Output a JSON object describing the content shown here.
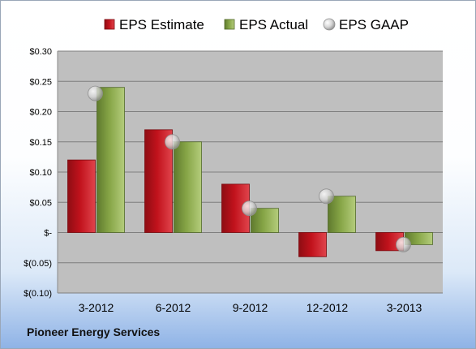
{
  "footer": {
    "company": "Pioneer Energy Services"
  },
  "colors": {
    "estimate": "#c1121c",
    "actual": "#86a546",
    "gaap": "#b8b8b8",
    "plot_bg": "#bfbfbf",
    "grid": "#7f7f7f"
  },
  "chart_data": {
    "type": "bar",
    "title": "",
    "xlabel": "",
    "ylabel": "",
    "categories": [
      "3-2012",
      "6-2012",
      "9-2012",
      "12-2012",
      "3-2013"
    ],
    "series": [
      {
        "name": "EPS Estimate",
        "type": "bar",
        "values": [
          0.12,
          0.17,
          0.08,
          -0.04,
          -0.03
        ]
      },
      {
        "name": "EPS Actual",
        "type": "bar",
        "values": [
          0.24,
          0.15,
          0.04,
          0.06,
          -0.02
        ]
      },
      {
        "name": "EPS GAAP",
        "type": "scatter",
        "values": [
          0.23,
          0.15,
          0.04,
          0.06,
          -0.02
        ]
      }
    ],
    "ylim": [
      -0.1,
      0.3
    ],
    "yticks": [
      -0.1,
      -0.05,
      0,
      0.05,
      0.1,
      0.15,
      0.2,
      0.25,
      0.3
    ],
    "ytick_labels": [
      "$(0.10)",
      "$(0.05)",
      "$-",
      "$0.05",
      "$0.10",
      "$0.15",
      "$0.20",
      "$0.25",
      "$0.30"
    ],
    "grid": true,
    "legend_position": "top"
  }
}
